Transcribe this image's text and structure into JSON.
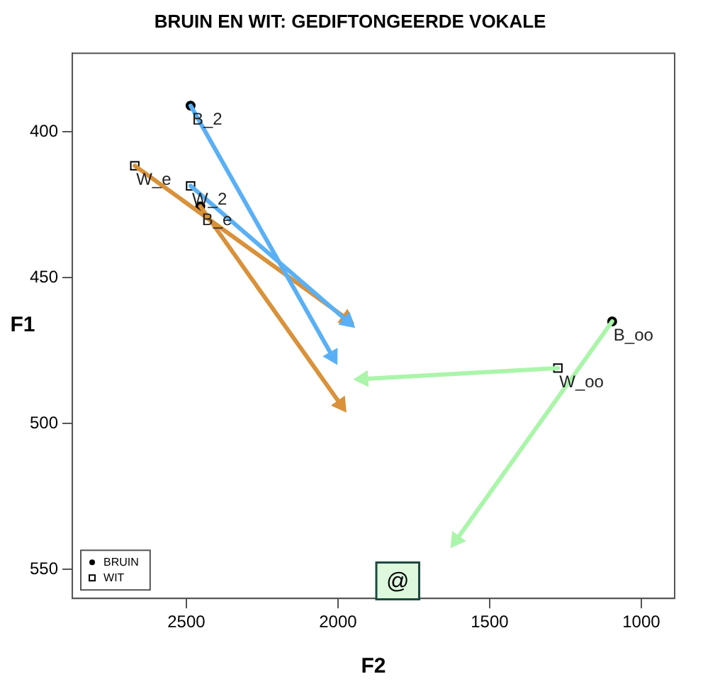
{
  "chart_data": {
    "type": "scatter",
    "title": "BRUIN EN WIT: GEDIFTONGEERDE VOKALE",
    "xlabel": "F2",
    "ylabel": "F1",
    "xlim": [
      2876,
      890
    ],
    "ylim": [
      560,
      373
    ],
    "xticks": [
      2500,
      2000,
      1500,
      1000
    ],
    "yticks": [
      400,
      450,
      500,
      550
    ],
    "grid": false,
    "legend": "bottom left",
    "series": [
      {
        "type": "line",
        "marker": "triangle",
        "color": "#5ab0f5",
        "x": [
          2486,
          2018
        ],
        "values": [
          391,
          477
        ]
      },
      {
        "type": "line",
        "marker": "triangle",
        "color": "#5ab0f5",
        "x": [
          2486,
          1968
        ],
        "values": [
          418.5,
          465
        ]
      },
      {
        "type": "line",
        "marker": "triangle",
        "color": "#d9913a",
        "x": [
          2670,
          1972
        ],
        "values": [
          411.6,
          464
        ]
      },
      {
        "type": "line",
        "marker": "triangle",
        "color": "#d9913a",
        "x": [
          2454,
          1991
        ],
        "values": [
          425.5,
          493.5
        ]
      },
      {
        "type": "line",
        "marker": "triangle",
        "color": "#aaf5aa",
        "x": [
          1096,
          1610
        ],
        "values": [
          465,
          540
        ]
      },
      {
        "type": "line",
        "marker": "triangle",
        "color": "#aaf5aa",
        "x": [
          1275,
          1917
        ],
        "values": [
          481,
          484.7
        ]
      },
      {
        "type": "scatter",
        "name": "BRUIN",
        "marker": "circle",
        "color": "#000000",
        "x": [
          2486,
          2454,
          1096
        ],
        "values": [
          391,
          425.5,
          465
        ]
      },
      {
        "type": "scatter",
        "name": "WIT",
        "marker": "square",
        "color": "#000000",
        "x": [
          2486,
          2670,
          1275
        ],
        "values": [
          418.5,
          411.6,
          481
        ]
      }
    ],
    "annotations": [
      {
        "text": "B_2",
        "x": 2486,
        "y": 391
      },
      {
        "text": "B_e",
        "x": 2454,
        "y": 425.5
      },
      {
        "text": "B_oo",
        "x": 1096,
        "y": 465
      },
      {
        "text": "W_2",
        "x": 2486,
        "y": 418.5
      },
      {
        "text": "W_e",
        "x": 2670,
        "y": 411.6
      },
      {
        "text": "W_oo",
        "x": 1275,
        "y": 481
      },
      {
        "text": "@",
        "x": 1803,
        "y": 554
      }
    ]
  }
}
